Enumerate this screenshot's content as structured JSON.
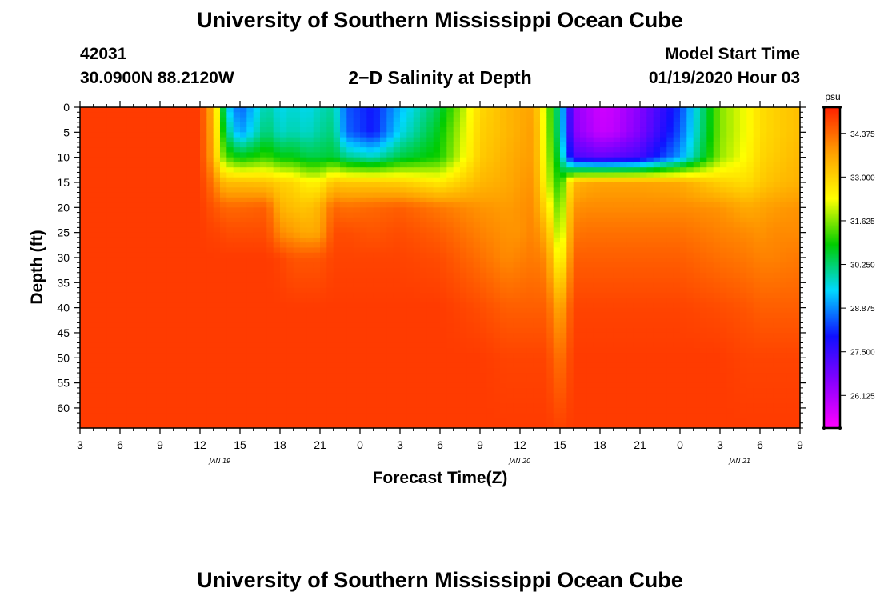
{
  "header": {
    "title": "University of Southern Mississippi Ocean Cube",
    "station_id": "42031",
    "location": "30.0900N 88.2120W",
    "subtitle": "2−D Salinity at Depth",
    "model_start_label": "Model Start Time",
    "model_start_value": "01/19/2020 Hour 03"
  },
  "footer": {
    "title": "University of Southern Mississippi Ocean Cube"
  },
  "chart_data": {
    "type": "heatmap",
    "title": "2−D Salinity at Depth",
    "xlabel": "Forecast Time(Z)",
    "ylabel": "Depth (ft)",
    "x_tick_labels": [
      "3",
      "6",
      "9",
      "12",
      "15",
      "18",
      "21",
      "0",
      "3",
      "6",
      "9",
      "12",
      "15",
      "18",
      "21",
      "0",
      "3",
      "6",
      "9"
    ],
    "x_date_labels": [
      {
        "label": "JAN 19",
        "at_tick": 3.5
      },
      {
        "label": "JAN 20",
        "at_tick": 11
      },
      {
        "label": "JAN 21",
        "at_tick": 16.5
      }
    ],
    "x_range_hours": [
      0,
      54
    ],
    "y_ticks": [
      0,
      5,
      10,
      15,
      20,
      25,
      30,
      35,
      40,
      45,
      50,
      55,
      60
    ],
    "y_range": [
      0,
      64
    ],
    "y_inverted": true,
    "colorbar": {
      "unit": "psu",
      "tick_values": [
        26.125,
        27.5,
        28.875,
        30.25,
        31.625,
        33.0,
        34.375
      ],
      "tick_labels": [
        "26.125",
        "27.500",
        "28.875",
        "30.250",
        "31.625",
        "33.000",
        "34.375"
      ],
      "range": [
        25.1,
        35.2
      ],
      "colors": [
        "#ff00ff",
        "#8a00ff",
        "#1010ff",
        "#00d8ff",
        "#00cc00",
        "#ffff00",
        "#ffa000",
        "#ff2000"
      ]
    },
    "depth_axis": [
      0,
      5,
      10,
      15,
      20,
      25,
      30,
      40,
      50,
      64
    ],
    "time_axis_hours": [
      0,
      8,
      9,
      10,
      10.5,
      11,
      12,
      14,
      15,
      16,
      17,
      18,
      19,
      20,
      22,
      24,
      27,
      30,
      32,
      33,
      34,
      35,
      36,
      37,
      38,
      39,
      40,
      42,
      45,
      48,
      50,
      51,
      52,
      54
    ],
    "salinity_psu": [
      [
        34.9,
        34.9,
        34.9,
        34.9,
        34.9,
        34.9,
        34.9,
        34.9,
        34.9,
        34.9
      ],
      [
        34.9,
        34.9,
        34.9,
        34.9,
        34.9,
        34.9,
        34.9,
        34.9,
        34.9,
        34.9
      ],
      [
        34.9,
        34.9,
        34.9,
        34.9,
        34.9,
        34.9,
        34.9,
        34.9,
        34.9,
        34.9
      ],
      [
        33.4,
        33.5,
        33.6,
        34.2,
        34.6,
        34.8,
        34.9,
        34.9,
        34.9,
        34.9
      ],
      [
        31.5,
        31.7,
        32.0,
        33.6,
        34.5,
        34.8,
        34.9,
        34.9,
        34.9,
        34.9
      ],
      [
        29.5,
        30.2,
        31.3,
        33.3,
        34.4,
        34.7,
        34.9,
        34.9,
        34.9,
        34.9
      ],
      [
        28.5,
        28.9,
        30.8,
        33.3,
        34.4,
        34.7,
        34.9,
        34.9,
        34.9,
        34.9
      ],
      [
        30.0,
        30.3,
        31.2,
        33.2,
        34.5,
        34.7,
        34.9,
        34.9,
        34.9,
        34.9
      ],
      [
        29.5,
        29.7,
        30.8,
        33.0,
        33.5,
        34.0,
        34.8,
        34.9,
        34.9,
        34.9
      ],
      [
        29.7,
        29.9,
        30.8,
        32.9,
        33.3,
        33.8,
        34.6,
        34.9,
        34.9,
        34.9
      ],
      [
        29.5,
        29.7,
        30.5,
        32.5,
        33.2,
        33.6,
        34.6,
        34.9,
        34.9,
        34.9
      ],
      [
        29.8,
        30.0,
        30.5,
        32.5,
        33.5,
        33.7,
        34.6,
        34.9,
        34.9,
        34.9
      ],
      [
        30.0,
        30.2,
        30.6,
        33.2,
        34.4,
        34.7,
        34.8,
        34.9,
        34.9,
        34.9
      ],
      [
        28.5,
        28.6,
        30.1,
        33.1,
        34.3,
        34.7,
        34.8,
        34.9,
        34.9,
        34.9
      ],
      [
        28.0,
        28.0,
        29.8,
        33.1,
        34.4,
        34.6,
        34.8,
        34.9,
        34.9,
        34.9
      ],
      [
        29.2,
        29.5,
        30.5,
        33.0,
        34.5,
        34.7,
        34.8,
        34.9,
        34.9,
        34.9
      ],
      [
        30.5,
        30.8,
        31.0,
        32.6,
        34.2,
        34.5,
        34.7,
        34.9,
        34.9,
        34.9
      ],
      [
        32.9,
        33.0,
        33.1,
        33.4,
        33.9,
        34.1,
        34.3,
        34.7,
        34.9,
        34.9
      ],
      [
        33.4,
        33.4,
        33.5,
        33.6,
        33.8,
        33.9,
        34.0,
        34.5,
        34.8,
        34.9
      ],
      [
        33.6,
        33.6,
        33.7,
        33.8,
        33.9,
        33.9,
        34.1,
        34.5,
        34.8,
        34.9
      ],
      [
        33.7,
        33.8,
        33.8,
        33.9,
        34.0,
        34.1,
        34.2,
        34.5,
        34.8,
        34.9
      ],
      [
        31.8,
        31.9,
        32.0,
        32.2,
        32.8,
        33.5,
        34.0,
        34.5,
        34.8,
        34.9
      ],
      [
        29.8,
        29.9,
        30.3,
        30.8,
        31.2,
        31.5,
        32.0,
        33.5,
        34.2,
        34.8
      ],
      [
        26.5,
        26.6,
        27.3,
        33.4,
        33.9,
        34.2,
        34.5,
        34.8,
        34.9,
        34.9
      ],
      [
        26.1,
        26.2,
        27.2,
        33.6,
        34.0,
        34.3,
        34.5,
        34.8,
        34.9,
        34.9
      ],
      [
        25.7,
        25.8,
        27.0,
        33.7,
        34.0,
        34.3,
        34.5,
        34.8,
        34.9,
        34.9
      ],
      [
        25.8,
        25.9,
        27.1,
        33.7,
        34.0,
        34.3,
        34.5,
        34.8,
        34.9,
        34.9
      ],
      [
        26.6,
        26.7,
        27.4,
        33.7,
        34.0,
        34.3,
        34.5,
        34.8,
        34.9,
        34.9
      ],
      [
        28.3,
        28.5,
        29.0,
        33.6,
        34.0,
        34.3,
        34.5,
        34.8,
        34.9,
        34.9
      ],
      [
        31.6,
        31.6,
        31.7,
        33.0,
        33.9,
        34.1,
        34.3,
        34.7,
        34.9,
        34.9
      ],
      [
        32.3,
        32.3,
        32.4,
        32.8,
        33.6,
        34.0,
        34.2,
        34.6,
        34.8,
        34.9
      ],
      [
        32.8,
        32.8,
        32.9,
        33.1,
        33.7,
        33.9,
        34.1,
        34.5,
        34.8,
        34.9
      ],
      [
        33.0,
        33.0,
        33.1,
        33.3,
        33.8,
        34.0,
        34.1,
        34.5,
        34.8,
        34.9
      ],
      [
        33.3,
        33.3,
        33.4,
        33.5,
        33.9,
        34.0,
        34.2,
        34.5,
        34.8,
        34.9
      ]
    ]
  }
}
